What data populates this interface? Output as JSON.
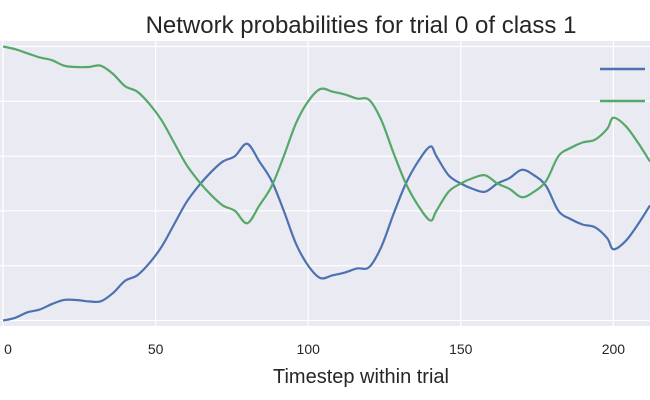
{
  "chart_data": {
    "type": "line",
    "title": "Network probabilities for trial 0 of class 1",
    "xlabel": "Timestep within trial",
    "ylabel": "",
    "xlim": [
      -1,
      212
    ],
    "ylim": [
      -0.02,
      1.02
    ],
    "xticks": [
      0,
      50,
      100,
      150,
      200
    ],
    "yticks": [
      0.0,
      0.2,
      0.4,
      0.6,
      0.8,
      1.0
    ],
    "grid": true,
    "legend": "top-right",
    "series": [
      {
        "color": "#4c72b0",
        "x": [
          0,
          4,
          8,
          12,
          16,
          20,
          24,
          28,
          32,
          36,
          40,
          44,
          48,
          52,
          56,
          60,
          64,
          68,
          72,
          76,
          80,
          84,
          88,
          92,
          96,
          100,
          104,
          108,
          112,
          116,
          120,
          124,
          128,
          132,
          136,
          140,
          142,
          146,
          150,
          154,
          158,
          162,
          166,
          170,
          174,
          178,
          182,
          186,
          190,
          194,
          198,
          200,
          204,
          208,
          212
        ],
        "y": [
          0.0,
          0.01,
          0.03,
          0.04,
          0.06,
          0.075,
          0.075,
          0.07,
          0.07,
          0.1,
          0.145,
          0.165,
          0.21,
          0.27,
          0.35,
          0.43,
          0.49,
          0.54,
          0.58,
          0.6,
          0.645,
          0.58,
          0.51,
          0.4,
          0.28,
          0.2,
          0.155,
          0.165,
          0.175,
          0.19,
          0.195,
          0.27,
          0.39,
          0.5,
          0.58,
          0.635,
          0.6,
          0.53,
          0.5,
          0.48,
          0.47,
          0.5,
          0.52,
          0.55,
          0.53,
          0.49,
          0.4,
          0.37,
          0.35,
          0.34,
          0.3,
          0.26,
          0.29,
          0.35,
          0.42
        ]
      },
      {
        "color": "#55a868",
        "x": [
          0,
          4,
          8,
          12,
          16,
          20,
          24,
          28,
          32,
          36,
          40,
          44,
          48,
          52,
          56,
          60,
          64,
          68,
          72,
          76,
          80,
          84,
          88,
          92,
          96,
          100,
          104,
          108,
          112,
          116,
          120,
          124,
          128,
          132,
          136,
          140,
          142,
          146,
          150,
          154,
          158,
          162,
          166,
          170,
          174,
          178,
          182,
          186,
          190,
          194,
          198,
          200,
          204,
          208,
          212
        ],
        "y": [
          1.0,
          0.99,
          0.975,
          0.96,
          0.95,
          0.93,
          0.925,
          0.925,
          0.93,
          0.9,
          0.855,
          0.835,
          0.79,
          0.73,
          0.65,
          0.57,
          0.51,
          0.46,
          0.42,
          0.4,
          0.355,
          0.42,
          0.49,
          0.6,
          0.72,
          0.8,
          0.845,
          0.835,
          0.825,
          0.81,
          0.805,
          0.73,
          0.61,
          0.5,
          0.42,
          0.365,
          0.4,
          0.47,
          0.5,
          0.52,
          0.53,
          0.5,
          0.48,
          0.45,
          0.47,
          0.51,
          0.6,
          0.63,
          0.65,
          0.66,
          0.7,
          0.74,
          0.71,
          0.65,
          0.58
        ]
      }
    ]
  }
}
